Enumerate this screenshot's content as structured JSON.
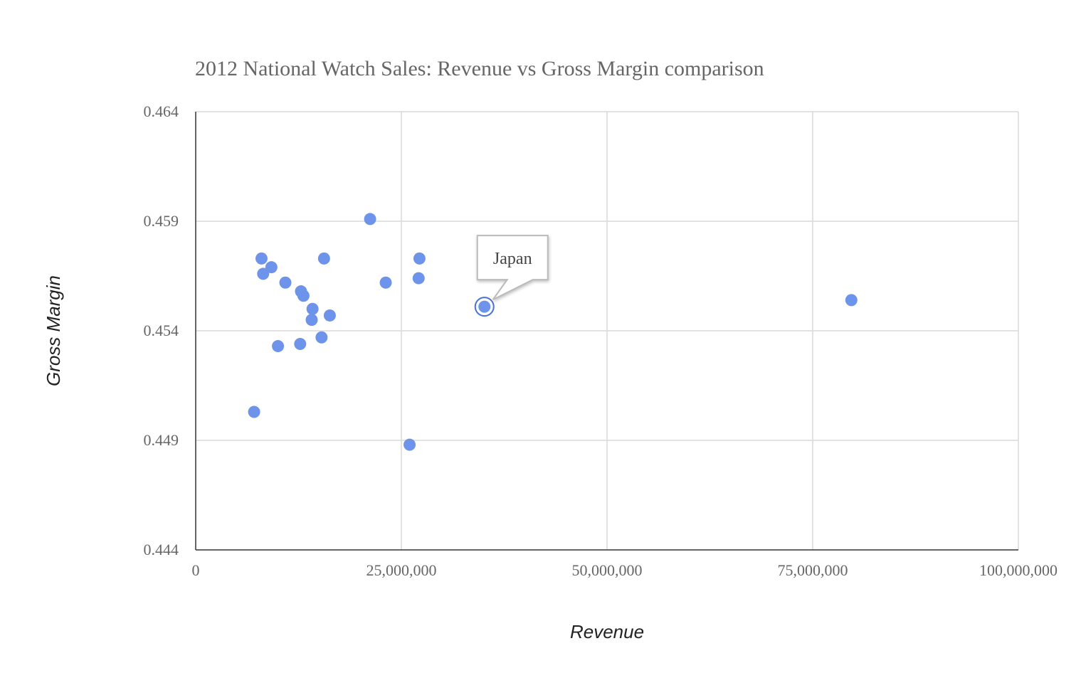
{
  "chart_data": {
    "type": "scatter",
    "title": "2012 National Watch Sales: Revenue vs Gross Margin comparison",
    "xlabel": "Revenue",
    "ylabel": "Gross Margin",
    "xlim": [
      0,
      100000000
    ],
    "ylim": [
      0.444,
      0.464
    ],
    "x_ticks": [
      0,
      25000000,
      50000000,
      75000000,
      100000000
    ],
    "x_tick_labels": [
      "0",
      "25,000,000",
      "50,000,000",
      "75,000,000",
      "100,000,000"
    ],
    "y_ticks": [
      0.444,
      0.449,
      0.454,
      0.459,
      0.464
    ],
    "y_tick_labels": [
      "0.444",
      "0.449",
      "0.454",
      "0.459",
      "0.464"
    ],
    "grid": true,
    "legend": "none",
    "colors": {
      "point": "#6d94ea",
      "point_stroke": "#4a72d6",
      "grid": "#d9d9d9",
      "axis": "#333333"
    },
    "points": [
      {
        "x": 21200000,
        "y": 0.4591
      },
      {
        "x": 8000000,
        "y": 0.4573
      },
      {
        "x": 9200000,
        "y": 0.4569
      },
      {
        "x": 8200000,
        "y": 0.4566
      },
      {
        "x": 10900000,
        "y": 0.4562
      },
      {
        "x": 15600000,
        "y": 0.4573
      },
      {
        "x": 27200000,
        "y": 0.4573
      },
      {
        "x": 27100000,
        "y": 0.4564
      },
      {
        "x": 23100000,
        "y": 0.4562
      },
      {
        "x": 12800000,
        "y": 0.4558
      },
      {
        "x": 13100000,
        "y": 0.4556
      },
      {
        "x": 14200000,
        "y": 0.455
      },
      {
        "x": 16300000,
        "y": 0.4547
      },
      {
        "x": 14100000,
        "y": 0.4545
      },
      {
        "x": 15300000,
        "y": 0.4537
      },
      {
        "x": 10000000,
        "y": 0.4533
      },
      {
        "x": 12700000,
        "y": 0.4534
      },
      {
        "x": 7100000,
        "y": 0.4503
      },
      {
        "x": 26000000,
        "y": 0.4488
      },
      {
        "x": 79700000,
        "y": 0.4554
      },
      {
        "x": 35100000,
        "y": 0.4551,
        "label": "Japan",
        "highlighted": true
      }
    ]
  }
}
